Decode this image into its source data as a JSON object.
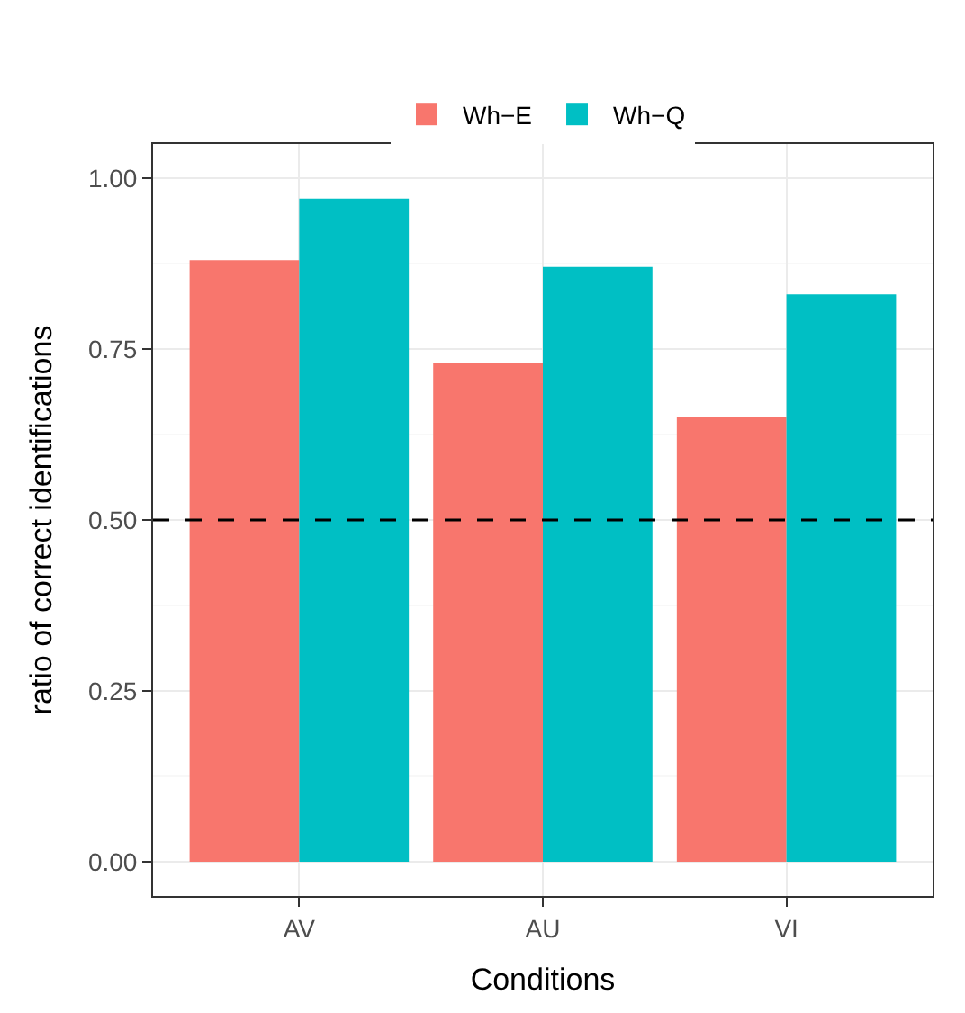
{
  "chart_data": {
    "type": "bar",
    "xlabel": "Conditions",
    "ylabel": "ratio of correct identifications",
    "categories": [
      "AV",
      "AU",
      "VI"
    ],
    "series": [
      {
        "name": "Wh−E",
        "color": "#f8766d",
        "values": [
          0.88,
          0.73,
          0.65
        ]
      },
      {
        "name": "Wh−Q",
        "color": "#00bfc4",
        "values": [
          0.97,
          0.87,
          0.83
        ]
      }
    ],
    "ylim": [
      -0.05,
      1.05
    ],
    "yticks": [
      {
        "value": 0,
        "label": "0.00"
      },
      {
        "value": 0.25,
        "label": "0.25"
      },
      {
        "value": 0.5,
        "label": "0.50"
      },
      {
        "value": 0.75,
        "label": "0.75"
      },
      {
        "value": 1,
        "label": "1.00"
      }
    ],
    "ref_lines": [
      {
        "axis": "y",
        "value": 0.5,
        "label": null,
        "color": "#000000",
        "line_style": "dashed"
      }
    ],
    "grid": true,
    "legend": "top"
  }
}
